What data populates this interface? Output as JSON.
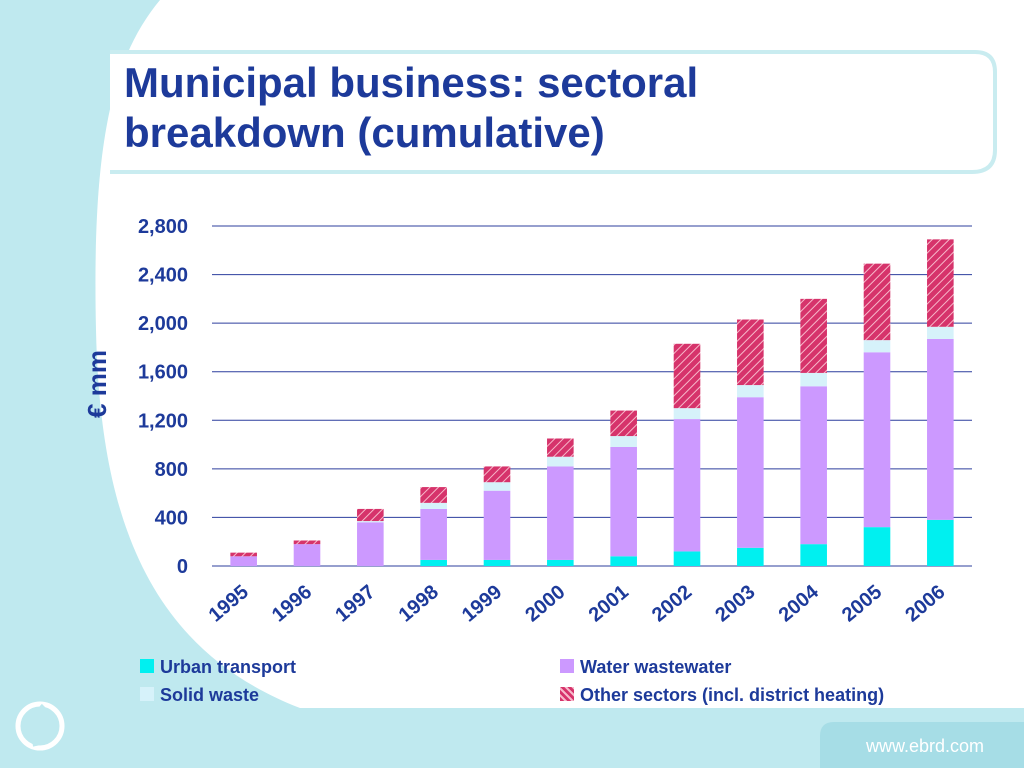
{
  "slide": {
    "title": "Municipal business: sectoral breakdown (cumulative)",
    "footer_url": "www.ebrd.com"
  },
  "legend": [
    {
      "label": "Urban transport",
      "color": "#00f0f0"
    },
    {
      "label": "Water wastewater",
      "color": "#cc99ff"
    },
    {
      "label": "Solid waste",
      "color": "#d6f2fa"
    },
    {
      "label": "Other sectors (incl. district heating)",
      "color": "#d6336b"
    }
  ],
  "chart_data": {
    "type": "bar",
    "stacked": true,
    "title": "",
    "xlabel": "",
    "ylabel": "€ mm",
    "ylim": [
      0,
      2800
    ],
    "yticks": [
      0,
      400,
      800,
      1200,
      1600,
      2000,
      2400,
      2800
    ],
    "ytick_labels": [
      "0",
      "400",
      "800",
      "1,200",
      "1,600",
      "2,000",
      "2,400",
      "2,800"
    ],
    "grid": true,
    "legend_position": "bottom",
    "categories": [
      "1995",
      "1996",
      "1997",
      "1998",
      "1999",
      "2000",
      "2001",
      "2002",
      "2003",
      "2004",
      "2005",
      "2006"
    ],
    "series": [
      {
        "name": "Urban transport",
        "color": "#00f0f0",
        "values": [
          0,
          0,
          0,
          50,
          50,
          50,
          80,
          120,
          150,
          180,
          320,
          380
        ]
      },
      {
        "name": "Water wastewater",
        "color": "#cc99ff",
        "values": [
          80,
          180,
          360,
          420,
          570,
          770,
          900,
          1090,
          1240,
          1300,
          1440,
          1490
        ]
      },
      {
        "name": "Solid waste",
        "color": "#d6f2fa",
        "values": [
          0,
          0,
          10,
          50,
          70,
          80,
          90,
          90,
          100,
          110,
          100,
          100
        ]
      },
      {
        "name": "Other sectors (incl. district heating)",
        "color": "#d6336b",
        "hatched": true,
        "values": [
          30,
          30,
          100,
          130,
          130,
          150,
          210,
          530,
          540,
          610,
          630,
          720
        ]
      }
    ]
  }
}
